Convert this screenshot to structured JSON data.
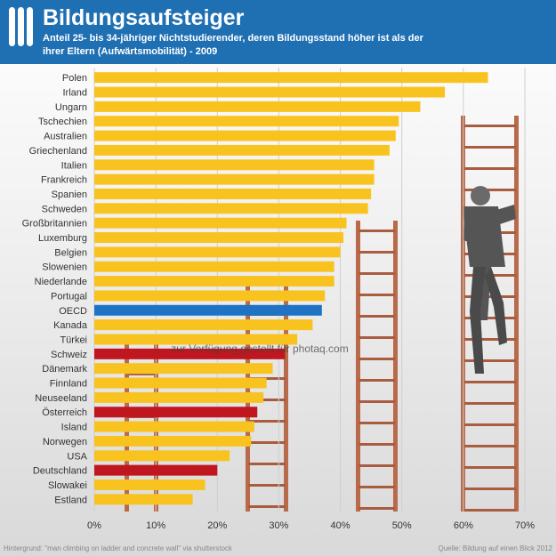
{
  "header": {
    "title": "Bildungsaufsteiger",
    "subtitle_line1": "Anteil 25- bis 34-jähriger Nichtstudierender, deren Bildungsstand höher ist als der",
    "subtitle_line2": "ihrer Eltern (Aufwärtsmobilität) - 2009",
    "background_color": "#1f6fb3"
  },
  "footer": {
    "left": "Hintergrund: \"man climbing on ladder and concrete wall\" via shutterstock",
    "right": "Quelle: Bildung auf einen Blick 2012"
  },
  "watermark": "zur Verfügung gestellt für photaq.com",
  "chart_data": {
    "type": "bar",
    "orientation": "horizontal",
    "title": "Bildungsaufsteiger",
    "xlim": [
      0,
      70
    ],
    "xticks": [
      "0%",
      "10%",
      "20%",
      "30%",
      "40%",
      "50%",
      "60%",
      "70%"
    ],
    "categories": [
      "Polen",
      "Irland",
      "Ungarn",
      "Tschechien",
      "Australien",
      "Griechenland",
      "Italien",
      "Frankreich",
      "Spanien",
      "Schweden",
      "Großbritannien",
      "Luxemburg",
      "Belgien",
      "Slowenien",
      "Niederlande",
      "Portugal",
      "OECD",
      "Kanada",
      "Türkei",
      "Schweiz",
      "Dänemark",
      "Finnland",
      "Neuseeland",
      "Österreich",
      "Island",
      "Norwegen",
      "USA",
      "Deutschland",
      "Slowakei",
      "Estland"
    ],
    "values": [
      64,
      57,
      53,
      49.5,
      49,
      48,
      45.5,
      45.5,
      45,
      44.5,
      41,
      40.5,
      40,
      39,
      39,
      37.5,
      37,
      35.5,
      33,
      31,
      29,
      28,
      27.5,
      26.5,
      26,
      25.5,
      22,
      20,
      18,
      16
    ],
    "colors": {
      "default": "#f9c31f",
      "highlight_oecd": "#1f73c4",
      "highlight_dach": "#c0161f"
    },
    "highlights": {
      "OECD": "highlight_oecd",
      "Schweiz": "highlight_dach",
      "Österreich": "highlight_dach",
      "Deutschland": "highlight_dach"
    }
  }
}
